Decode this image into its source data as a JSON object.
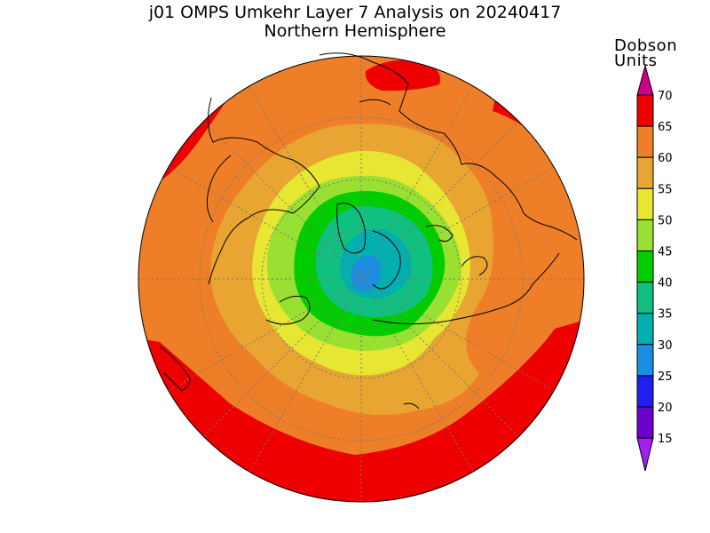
{
  "title": {
    "line1": "j01 OMPS Umkehr Layer 7 Analysis on 20240417",
    "line2": "Northern Hemisphere"
  },
  "colorbar": {
    "unit_line1": "Dobson",
    "unit_line2": "Units",
    "ticks": [
      "70",
      "65",
      "60",
      "55",
      "50",
      "45",
      "40",
      "35",
      "30",
      "25",
      "20",
      "15"
    ],
    "colors": [
      "#ee0000",
      "#ee7f28",
      "#e8a532",
      "#e6e633",
      "#99e032",
      "#00cc00",
      "#11c080",
      "#00b0b0",
      "#1a8ee6",
      "#2020ee",
      "#6b00cc",
      "#9b00ee"
    ],
    "top_arrow_color": "#cc0088",
    "bottom_arrow_color": "#a020f0"
  },
  "map": {
    "projection": "north-polar-stereographic",
    "field": "ozone",
    "units": "Dobson Units",
    "levels": [
      15,
      20,
      25,
      30,
      35,
      40,
      45,
      50,
      55,
      60,
      65,
      70
    ],
    "background_color": "#ee7f28"
  }
}
